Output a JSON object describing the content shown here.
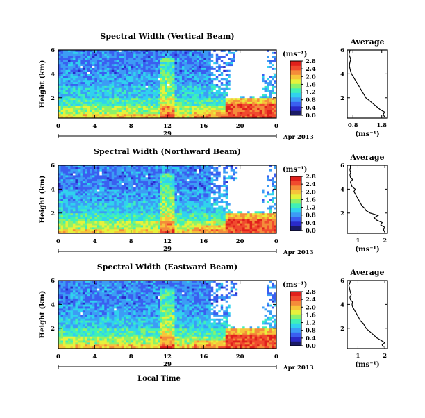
{
  "chart_data": [
    {
      "type": "heatmap",
      "title": "Spectral Width (Vertical Beam)",
      "ylabel": "Height (km)",
      "x_ticks": [
        "0",
        "4",
        "8",
        "12",
        "16",
        "20",
        "0"
      ],
      "xlim": [
        0,
        24
      ],
      "x_ticklabels": [
        "0",
        "4",
        "8",
        "12",
        "16",
        "20",
        "0"
      ],
      "y_ticks": [
        2,
        4,
        6
      ],
      "ylim": [
        0.3,
        6
      ],
      "y_ticklabels": [
        "2",
        "4",
        "6"
      ],
      "date_day": "29",
      "date_label": "Apr 2013",
      "colorbar_units": "(ms⁻¹)",
      "colorbar_range": [
        0.0,
        2.8
      ],
      "colorbar_ticks": [
        "0.0",
        "0.4",
        "0.8",
        "1.2",
        "1.6",
        "2.0",
        "2.4",
        "2.8"
      ],
      "average": {
        "title": "Average",
        "xlabel": "(ms⁻¹)",
        "xticks": [
          "0.8",
          "1.8"
        ],
        "xlim": [
          0.6,
          2.0
        ],
        "yticks": [
          "2",
          "4",
          "6"
        ],
        "ylim": [
          0.3,
          6
        ],
        "height": [
          0.4,
          0.6,
          0.8,
          1.0,
          1.2,
          1.4,
          1.6,
          1.8,
          2.0,
          2.2,
          2.4,
          2.6,
          2.8,
          3.0,
          3.2,
          3.4,
          3.6,
          3.8,
          4.0,
          4.2,
          4.4,
          4.6,
          4.8,
          5.0,
          5.2,
          5.4,
          5.6,
          5.8,
          6.0
        ],
        "width": [
          1.9,
          1.85,
          1.9,
          1.75,
          1.65,
          1.55,
          1.45,
          1.35,
          1.25,
          1.2,
          1.15,
          1.1,
          1.05,
          1.0,
          0.95,
          0.9,
          0.85,
          0.8,
          0.75,
          0.72,
          0.7,
          0.68,
          0.68,
          0.7,
          0.72,
          0.7,
          0.66,
          0.68,
          0.7
        ]
      }
    },
    {
      "type": "heatmap",
      "title": "Spectral Width (Northward Beam)",
      "ylabel": "Height (km)",
      "x_ticks": [
        "0",
        "4",
        "8",
        "12",
        "16",
        "20",
        "0"
      ],
      "xlim": [
        0,
        24
      ],
      "x_ticklabels": [
        "0",
        "4",
        "8",
        "12",
        "16",
        "20",
        "0"
      ],
      "y_ticks": [
        2,
        4,
        6
      ],
      "ylim": [
        0.3,
        6
      ],
      "y_ticklabels": [
        "2",
        "4",
        "6"
      ],
      "date_day": "29",
      "date_label": "Apr 2013",
      "colorbar_units": "(ms⁻¹)",
      "colorbar_range": [
        0.0,
        2.8
      ],
      "colorbar_ticks": [
        "0.0",
        "0.4",
        "0.8",
        "1.2",
        "1.6",
        "2.0",
        "2.4",
        "2.8"
      ],
      "average": {
        "title": "Average",
        "xlabel": "(ms⁻¹)",
        "xticks": [
          "1",
          "2"
        ],
        "xlim": [
          0.6,
          2.1
        ],
        "yticks": [
          "2",
          "4",
          "6"
        ],
        "ylim": [
          0.3,
          6
        ],
        "height": [
          0.4,
          0.6,
          0.8,
          1.0,
          1.2,
          1.4,
          1.6,
          1.8,
          2.0,
          2.2,
          2.4,
          2.6,
          2.8,
          3.0,
          3.2,
          3.4,
          3.6,
          3.8,
          4.0,
          4.2,
          4.4,
          4.6,
          4.8,
          5.0,
          5.2,
          5.4,
          5.6,
          5.8,
          6.0
        ],
        "width": [
          2.0,
          1.95,
          2.0,
          1.85,
          1.9,
          1.7,
          1.6,
          1.75,
          1.45,
          1.3,
          1.25,
          1.15,
          1.1,
          1.05,
          1.0,
          0.95,
          0.9,
          0.85,
          0.9,
          0.78,
          0.75,
          0.72,
          0.8,
          0.72,
          0.7,
          0.73,
          0.7,
          0.72,
          0.72
        ]
      }
    },
    {
      "type": "heatmap",
      "title": "Spectral Width (Eastward Beam)",
      "ylabel": "Height (km)",
      "xlabel": "Local Time",
      "x_ticks": [
        "0",
        "4",
        "8",
        "12",
        "16",
        "20",
        "0"
      ],
      "xlim": [
        0,
        24
      ],
      "x_ticklabels": [
        "0",
        "4",
        "8",
        "12",
        "16",
        "20",
        "0"
      ],
      "y_ticks": [
        2,
        4,
        6
      ],
      "ylim": [
        0.3,
        6
      ],
      "y_ticklabels": [
        "2",
        "4",
        "6"
      ],
      "date_day": "29",
      "date_label": "Apr 2013",
      "colorbar_units": "(ms⁻¹)",
      "colorbar_range": [
        0.0,
        2.8
      ],
      "colorbar_ticks": [
        "0.0",
        "0.4",
        "0.8",
        "1.2",
        "1.6",
        "2.0",
        "2.4",
        "2.8"
      ],
      "average": {
        "title": "Average",
        "xlabel": "(ms⁻¹)",
        "xticks": [
          "1",
          "2"
        ],
        "xlim": [
          0.6,
          2.1
        ],
        "yticks": [
          "2",
          "4",
          "6"
        ],
        "ylim": [
          0.3,
          6
        ],
        "height": [
          0.4,
          0.6,
          0.8,
          1.0,
          1.2,
          1.4,
          1.6,
          1.8,
          2.0,
          2.2,
          2.4,
          2.6,
          2.8,
          3.0,
          3.2,
          3.4,
          3.6,
          3.8,
          4.0,
          4.2,
          4.4,
          4.6,
          4.8,
          5.0,
          5.2,
          5.4,
          5.6,
          5.8,
          6.0
        ],
        "width": [
          1.95,
          1.9,
          2.0,
          1.85,
          1.7,
          1.6,
          1.5,
          1.4,
          1.3,
          1.25,
          1.2,
          1.1,
          1.05,
          1.0,
          0.95,
          0.9,
          0.85,
          0.8,
          0.78,
          0.8,
          0.72,
          0.7,
          0.75,
          0.72,
          0.7,
          0.68,
          0.66,
          0.7,
          0.72
        ]
      }
    }
  ],
  "colors": {
    "colormap": [
      "#1a1a66",
      "#2a2ac8",
      "#3a5ff0",
      "#3c9cf5",
      "#30d2ee",
      "#3ff0b8",
      "#8cf26a",
      "#e6f23c",
      "#f7c43a",
      "#f48c3a",
      "#f04a2e",
      "#e0201c"
    ],
    "missing": "#ffffff",
    "axis": "#000000"
  }
}
